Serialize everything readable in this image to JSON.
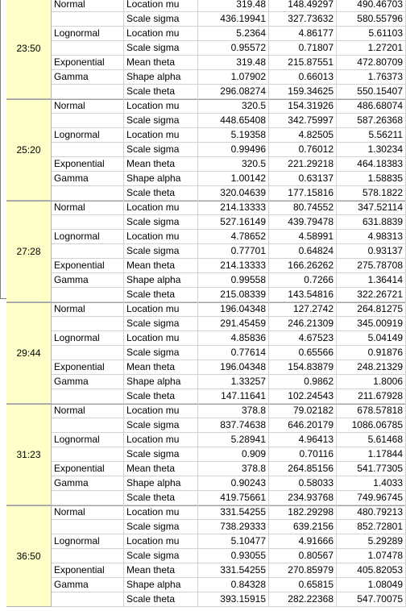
{
  "groups": [
    {
      "time": "23:50",
      "rows": [
        {
          "dist": "Normal",
          "param": "Location mu",
          "v": [
            "319.48",
            "148.49297",
            "490.46703"
          ]
        },
        {
          "dist": "",
          "param": "Scale sigma",
          "v": [
            "436.19941",
            "327.73632",
            "580.55796"
          ]
        },
        {
          "dist": "Lognormal",
          "param": "Location mu",
          "v": [
            "5.2364",
            "4.86177",
            "5.61103"
          ]
        },
        {
          "dist": "",
          "param": "Scale sigma",
          "v": [
            "0.95572",
            "0.71807",
            "1.27201"
          ]
        },
        {
          "dist": "Exponential",
          "param": "Mean theta",
          "v": [
            "319.48",
            "215.87551",
            "472.80709"
          ]
        },
        {
          "dist": "Gamma",
          "param": "Shape alpha",
          "v": [
            "1.07902",
            "0.66013",
            "1.76373"
          ]
        },
        {
          "dist": "",
          "param": "Scale theta",
          "v": [
            "296.08274",
            "159.34625",
            "550.15407"
          ]
        }
      ]
    },
    {
      "time": "25:20",
      "rows": [
        {
          "dist": "Normal",
          "param": "Location mu",
          "v": [
            "320.5",
            "154.31926",
            "486.68074"
          ]
        },
        {
          "dist": "",
          "param": "Scale sigma",
          "v": [
            "448.65408",
            "342.75997",
            "587.26368"
          ]
        },
        {
          "dist": "Lognormal",
          "param": "Location mu",
          "v": [
            "5.19358",
            "4.82505",
            "5.56211"
          ]
        },
        {
          "dist": "",
          "param": "Scale sigma",
          "v": [
            "0.99496",
            "0.76012",
            "1.30234"
          ]
        },
        {
          "dist": "Exponential",
          "param": "Mean theta",
          "v": [
            "320.5",
            "221.29218",
            "464.18383"
          ]
        },
        {
          "dist": "Gamma",
          "param": "Shape alpha",
          "v": [
            "1.00142",
            "0.63137",
            "1.58835"
          ]
        },
        {
          "dist": "",
          "param": "Scale theta",
          "v": [
            "320.04639",
            "177.15816",
            "578.1822"
          ]
        }
      ]
    },
    {
      "time": "27:28",
      "rows": [
        {
          "dist": "Normal",
          "param": "Location mu",
          "v": [
            "214.13333",
            "80.74552",
            "347.52114"
          ]
        },
        {
          "dist": "",
          "param": "Scale sigma",
          "v": [
            "527.16149",
            "439.79478",
            "631.8839"
          ]
        },
        {
          "dist": "Lognormal",
          "param": "Location mu",
          "v": [
            "4.78652",
            "4.58991",
            "4.98313"
          ]
        },
        {
          "dist": "",
          "param": "Scale sigma",
          "v": [
            "0.77701",
            "0.64824",
            "0.93137"
          ]
        },
        {
          "dist": "Exponential",
          "param": "Mean theta",
          "v": [
            "214.13333",
            "166.26262",
            "275.78708"
          ]
        },
        {
          "dist": "Gamma",
          "param": "Shape alpha",
          "v": [
            "0.99558",
            "0.7266",
            "1.36414"
          ]
        },
        {
          "dist": "",
          "param": "Scale theta",
          "v": [
            "215.08339",
            "143.54816",
            "322.26721"
          ]
        }
      ]
    },
    {
      "time": "29:44",
      "rows": [
        {
          "dist": "Normal",
          "param": "Location mu",
          "v": [
            "196.04348",
            "127.2742",
            "264.81275"
          ]
        },
        {
          "dist": "",
          "param": "Scale sigma",
          "v": [
            "291.45459",
            "246.21309",
            "345.00919"
          ]
        },
        {
          "dist": "Lognormal",
          "param": "Location mu",
          "v": [
            "4.85836",
            "4.67523",
            "5.04149"
          ]
        },
        {
          "dist": "",
          "param": "Scale sigma",
          "v": [
            "0.77614",
            "0.65566",
            "0.91876"
          ]
        },
        {
          "dist": "Exponential",
          "param": "Mean theta",
          "v": [
            "196.04348",
            "154.83879",
            "248.21329"
          ]
        },
        {
          "dist": "Gamma",
          "param": "Shape alpha",
          "v": [
            "1.33257",
            "0.9862",
            "1.8006"
          ]
        },
        {
          "dist": "",
          "param": "Scale theta",
          "v": [
            "147.11641",
            "102.24543",
            "211.67928"
          ]
        }
      ]
    },
    {
      "time": "31:23",
      "rows": [
        {
          "dist": "Normal",
          "param": "Location mu",
          "v": [
            "378.8",
            "79.02182",
            "678.57818"
          ]
        },
        {
          "dist": "",
          "param": "Scale sigma",
          "v": [
            "837.74638",
            "646.20179",
            "1086.06785"
          ]
        },
        {
          "dist": "Lognormal",
          "param": "Location mu",
          "v": [
            "5.28941",
            "4.96413",
            "5.61468"
          ]
        },
        {
          "dist": "",
          "param": "Scale sigma",
          "v": [
            "0.909",
            "0.70116",
            "1.17844"
          ]
        },
        {
          "dist": "Exponential",
          "param": "Mean theta",
          "v": [
            "378.8",
            "264.85156",
            "541.77305"
          ]
        },
        {
          "dist": "Gamma",
          "param": "Shape alpha",
          "v": [
            "0.90243",
            "0.58033",
            "1.4033"
          ]
        },
        {
          "dist": "",
          "param": "Scale theta",
          "v": [
            "419.75661",
            "234.93768",
            "749.96745"
          ]
        }
      ]
    },
    {
      "time": "36:50",
      "rows": [
        {
          "dist": "Normal",
          "param": "Location mu",
          "v": [
            "331.54255",
            "182.29298",
            "480.79213"
          ]
        },
        {
          "dist": "",
          "param": "Scale sigma",
          "v": [
            "738.29333",
            "639.2156",
            "852.72801"
          ]
        },
        {
          "dist": "Lognormal",
          "param": "Location mu",
          "v": [
            "5.10477",
            "4.91666",
            "5.29289"
          ]
        },
        {
          "dist": "",
          "param": "Scale sigma",
          "v": [
            "0.93055",
            "0.80567",
            "1.07478"
          ]
        },
        {
          "dist": "Exponential",
          "param": "Mean theta",
          "v": [
            "331.54255",
            "270.85979",
            "405.82053"
          ]
        },
        {
          "dist": "Gamma",
          "param": "Shape alpha",
          "v": [
            "0.84328",
            "0.65815",
            "1.08049"
          ]
        },
        {
          "dist": "",
          "param": "Scale theta",
          "v": [
            "393.15915",
            "282.22368",
            "547.70075"
          ]
        }
      ]
    }
  ]
}
